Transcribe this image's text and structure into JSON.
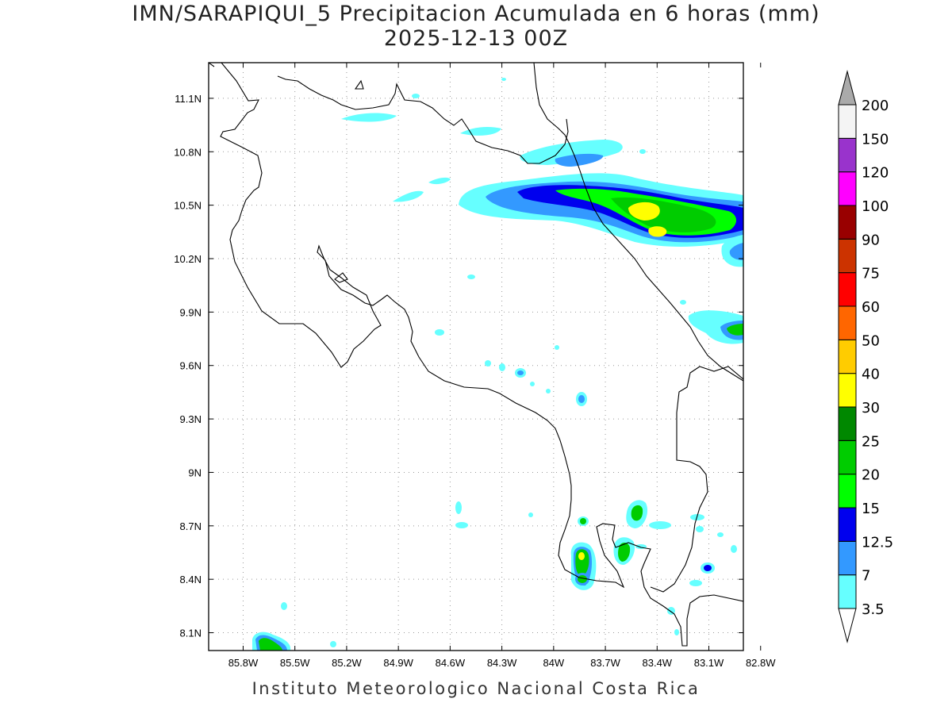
{
  "title_line1": "IMN/SARAPIQUI_5 Precipitacion Acumulada en 6 horas (mm)",
  "title_line2": "2025-12-13 00Z",
  "footer": "Instituto Meteorologico Nacional Costa Rica",
  "map": {
    "lon_range": [
      -86.0,
      -82.9
    ],
    "lat_range": [
      8.0,
      11.3
    ],
    "lon_ticks": [
      {
        "value": -85.8,
        "label": "85.8W"
      },
      {
        "value": -85.5,
        "label": "85.5W"
      },
      {
        "value": -85.2,
        "label": "85.2W"
      },
      {
        "value": -84.9,
        "label": "84.9W"
      },
      {
        "value": -84.6,
        "label": "84.6W"
      },
      {
        "value": -84.3,
        "label": "84.3W"
      },
      {
        "value": -84.0,
        "label": "84W"
      },
      {
        "value": -83.7,
        "label": "83.7W"
      },
      {
        "value": -83.4,
        "label": "83.4W"
      },
      {
        "value": -83.1,
        "label": "83.1W"
      },
      {
        "value": -82.8,
        "label": "82.8W"
      }
    ],
    "lat_ticks": [
      {
        "value": 11.1,
        "label": "11.1N"
      },
      {
        "value": 10.8,
        "label": "10.8N"
      },
      {
        "value": 10.5,
        "label": "10.5N"
      },
      {
        "value": 10.2,
        "label": "10.2N"
      },
      {
        "value": 9.9,
        "label": "9.9N"
      },
      {
        "value": 9.6,
        "label": "9.6N"
      },
      {
        "value": 9.3,
        "label": "9.3N"
      },
      {
        "value": 9.0,
        "label": "9N"
      },
      {
        "value": 8.7,
        "label": "8.7N"
      },
      {
        "value": 8.4,
        "label": "8.4N"
      },
      {
        "value": 8.1,
        "label": "8.1N"
      }
    ],
    "grid": true
  },
  "colorbar": {
    "unit": "mm",
    "bins": [
      {
        "label": "3.5",
        "color": "#66ffff"
      },
      {
        "label": "7",
        "color": "#3399ff"
      },
      {
        "label": "12.5",
        "color": "#0000ee"
      },
      {
        "label": "15",
        "color": "#00ff00"
      },
      {
        "label": "20",
        "color": "#00cc00"
      },
      {
        "label": "25",
        "color": "#008800"
      },
      {
        "label": "30",
        "color": "#ffff00"
      },
      {
        "label": "40",
        "color": "#ffcc00"
      },
      {
        "label": "50",
        "color": "#ff6600"
      },
      {
        "label": "60",
        "color": "#ff0000"
      },
      {
        "label": "75",
        "color": "#cc3300"
      },
      {
        "label": "90",
        "color": "#990000"
      },
      {
        "label": "100",
        "color": "#ff00ff"
      },
      {
        "label": "120",
        "color": "#9933cc"
      },
      {
        "label": "150",
        "color": "#f4f4f4"
      },
      {
        "label": "200",
        "color": "#aaaaaa"
      }
    ]
  }
}
